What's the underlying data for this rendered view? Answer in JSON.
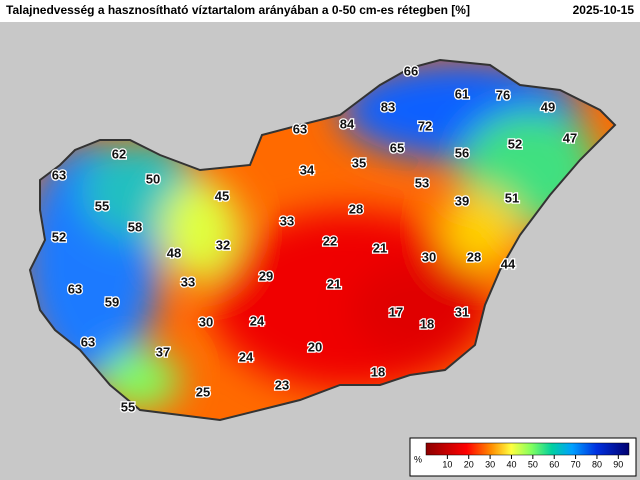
{
  "header": {
    "title": "Talajnedvesség a hasznosítható víztartalom arányában a 0-50 cm-es rétegben [%]",
    "date": "2025-10-15"
  },
  "map": {
    "values": [
      66,
      61,
      76,
      49,
      83,
      84,
      72,
      63,
      65,
      56,
      52,
      47,
      62,
      34,
      35,
      63,
      50,
      53,
      45,
      55,
      28,
      39,
      51,
      33,
      58,
      52,
      22,
      21,
      32,
      48,
      30,
      28,
      44,
      29,
      33,
      21,
      63,
      59,
      17,
      18,
      31,
      30,
      24,
      63,
      37,
      20,
      24,
      18,
      23,
      25,
      55
    ]
  },
  "colorbar": {
    "unit": "%",
    "range": [
      0,
      95
    ],
    "ticks": [
      10,
      20,
      30,
      40,
      50,
      60,
      70,
      80,
      90
    ]
  }
}
